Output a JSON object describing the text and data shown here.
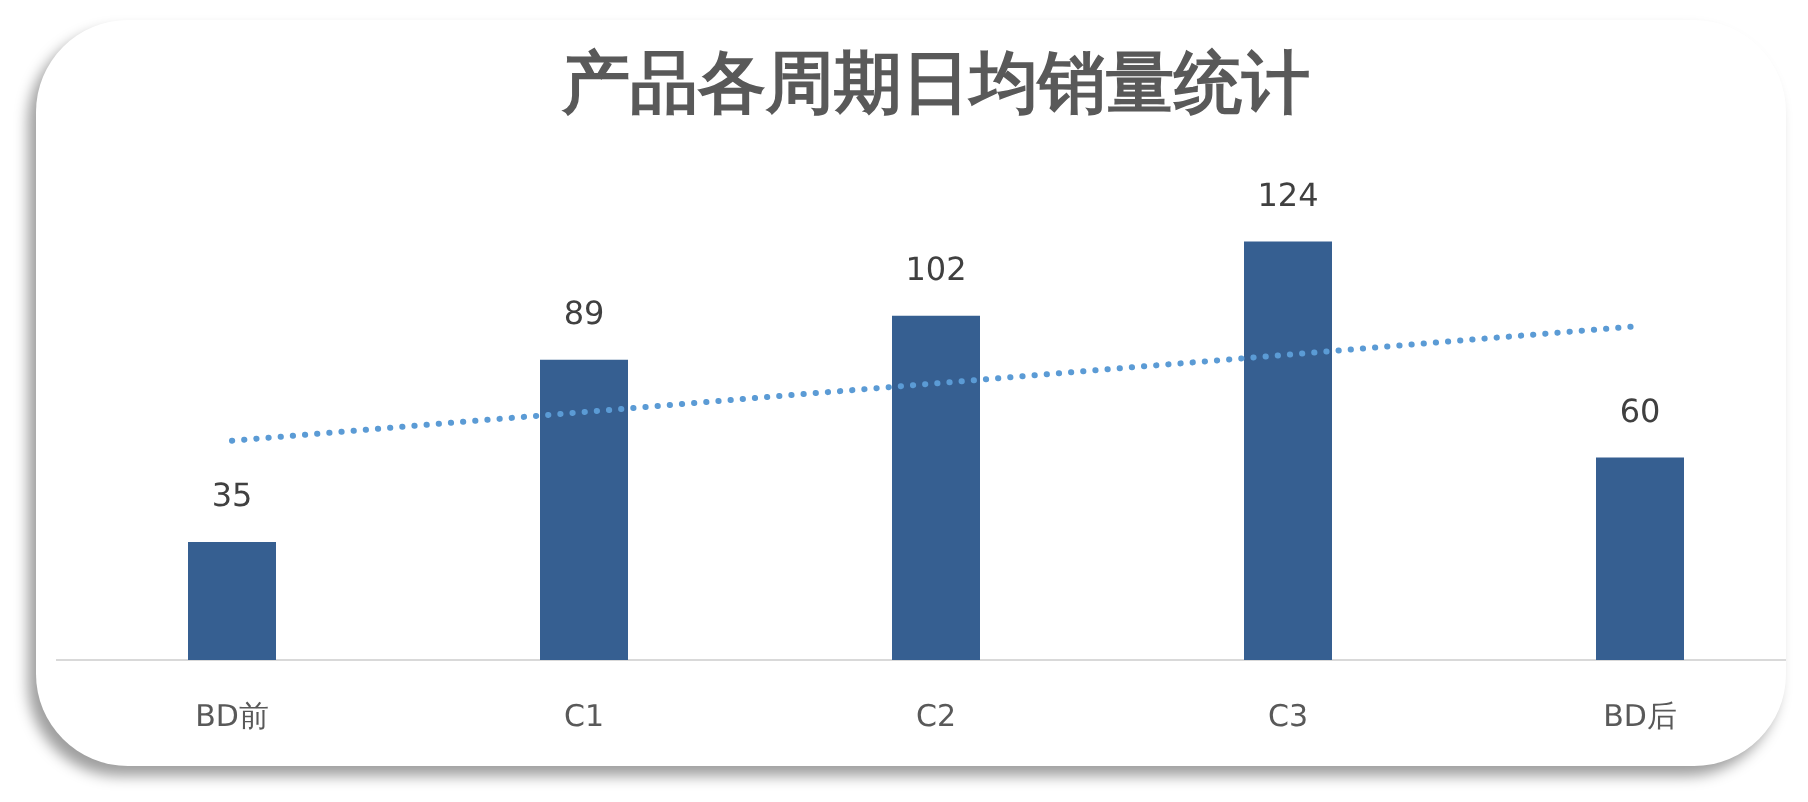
{
  "chart_data": {
    "type": "bar",
    "title": "产品各周期日均销量统计",
    "categories": [
      "BD前",
      "C1",
      "C2",
      "C3",
      "BD后"
    ],
    "series": [
      {
        "color": "#365f91",
        "values": [
          35,
          89,
          102,
          124,
          60
        ],
        "value_labels": [
          "35",
          "89",
          "102",
          "124",
          "60"
        ]
      },
      {
        "type": "line",
        "x": [
          "BD前",
          "BD后"
        ],
        "values": [
          65,
          99
        ],
        "color": "#5b9bd5",
        "line_style": "dotted",
        "marker": "none"
      }
    ],
    "legend": false,
    "grid": false
  }
}
